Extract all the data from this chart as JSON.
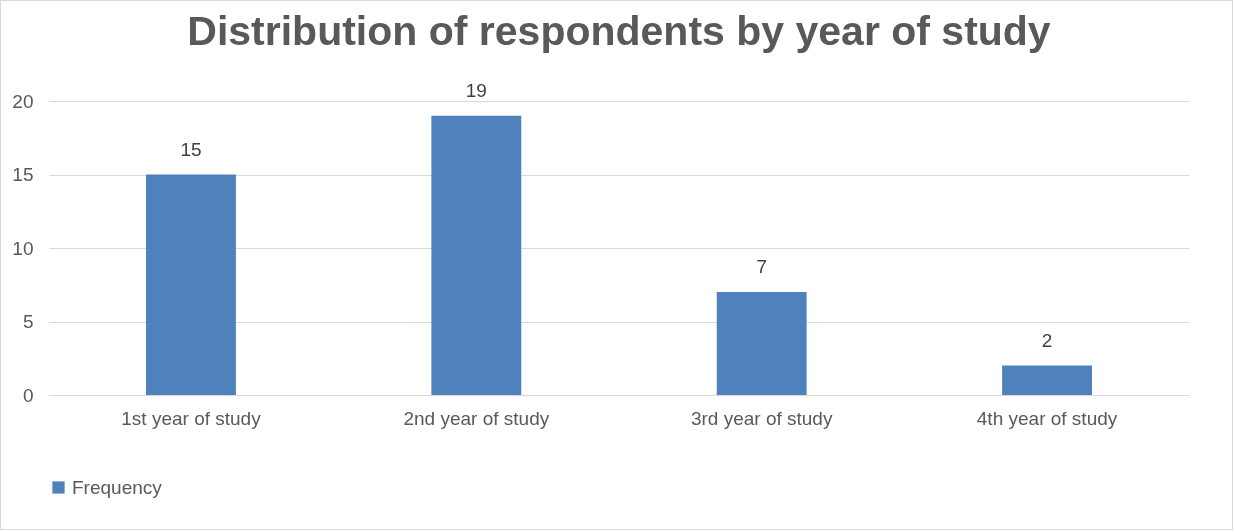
{
  "chart_data": {
    "type": "bar",
    "title": "Distribution of respondents by year of study",
    "categories": [
      "1st year of study",
      "2nd year of study",
      "3rd year of study",
      "4th year of study"
    ],
    "series": [
      {
        "name": "Frequency",
        "color": "#4f81bd",
        "values": [
          15,
          19,
          7,
          2
        ]
      }
    ],
    "ylim": [
      0,
      20
    ],
    "yticks": [
      0,
      5,
      10,
      15,
      20
    ],
    "grid": "y",
    "legend": "bottom",
    "data_labels": true
  }
}
